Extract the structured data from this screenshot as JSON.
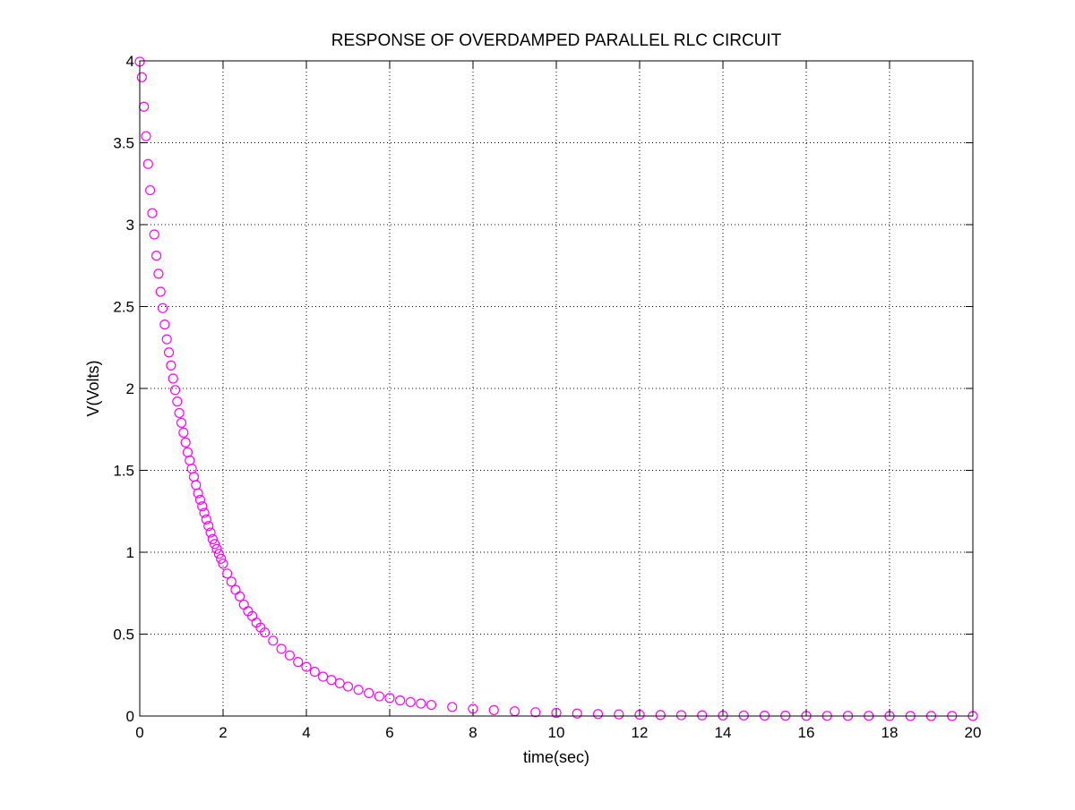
{
  "chart_data": {
    "type": "scatter",
    "title": "RESPONSE OF OVERDAMPED PARALLEL RLC CIRCUIT",
    "xlabel": "time(sec)",
    "ylabel": "V(Volts)",
    "xlim": [
      0,
      20
    ],
    "ylim": [
      0,
      4
    ],
    "grid": true,
    "legend": "none",
    "x_ticks": [
      "0",
      "2",
      "4",
      "6",
      "8",
      "10",
      "12",
      "14",
      "16",
      "18",
      "20"
    ],
    "y_ticks": [
      "0",
      "0.5",
      "1",
      "1.5",
      "2",
      "2.5",
      "3",
      "3.5",
      "4"
    ],
    "marker": "circle",
    "series": [
      {
        "color": "#ff00ff",
        "x": [
          0,
          0.05,
          0.1,
          0.15,
          0.2,
          0.25,
          0.3,
          0.35,
          0.4,
          0.45,
          0.5,
          0.55,
          0.6,
          0.65,
          0.7,
          0.75,
          0.8,
          0.85,
          0.9,
          0.95,
          1,
          1.05,
          1.1,
          1.15,
          1.2,
          1.25,
          1.3,
          1.35,
          1.4,
          1.45,
          1.5,
          1.55,
          1.6,
          1.65,
          1.7,
          1.75,
          1.8,
          1.85,
          1.9,
          1.95,
          2,
          2.1,
          2.2,
          2.3,
          2.4,
          2.5,
          2.6,
          2.7,
          2.8,
          2.9,
          3,
          3.2,
          3.4,
          3.6,
          3.8,
          4,
          4.2,
          4.4,
          4.6,
          4.8,
          5,
          5.25,
          5.5,
          5.75,
          6,
          6.25,
          6.5,
          6.75,
          7,
          7.5,
          8,
          8.5,
          9,
          9.5,
          10,
          10.5,
          11,
          11.5,
          12,
          12.5,
          13,
          13.5,
          14,
          14.5,
          15,
          15.5,
          16,
          16.5,
          17,
          17.5,
          18,
          18.5,
          19,
          19.5,
          20
        ],
        "y": [
          3.995,
          3.9,
          3.72,
          3.54,
          3.37,
          3.21,
          3.07,
          2.94,
          2.81,
          2.7,
          2.59,
          2.49,
          2.39,
          2.3,
          2.22,
          2.14,
          2.06,
          1.99,
          1.92,
          1.85,
          1.79,
          1.73,
          1.67,
          1.61,
          1.56,
          1.51,
          1.46,
          1.41,
          1.36,
          1.32,
          1.28,
          1.24,
          1.2,
          1.16,
          1.12,
          1.08,
          1.05,
          1.02,
          0.99,
          0.96,
          0.93,
          0.87,
          0.82,
          0.77,
          0.73,
          0.68,
          0.64,
          0.61,
          0.57,
          0.54,
          0.51,
          0.46,
          0.41,
          0.37,
          0.33,
          0.3,
          0.27,
          0.24,
          0.22,
          0.2,
          0.18,
          0.16,
          0.14,
          0.12,
          0.11,
          0.095,
          0.085,
          0.076,
          0.068,
          0.055,
          0.044,
          0.036,
          0.029,
          0.023,
          0.019,
          0.015,
          0.012,
          0.01,
          0.008,
          0.006,
          0.005,
          0.004,
          0.003,
          0.003,
          0.002,
          0.002,
          0.001,
          0.001,
          0.001,
          0.001,
          0,
          0,
          0,
          0,
          0
        ]
      }
    ]
  }
}
